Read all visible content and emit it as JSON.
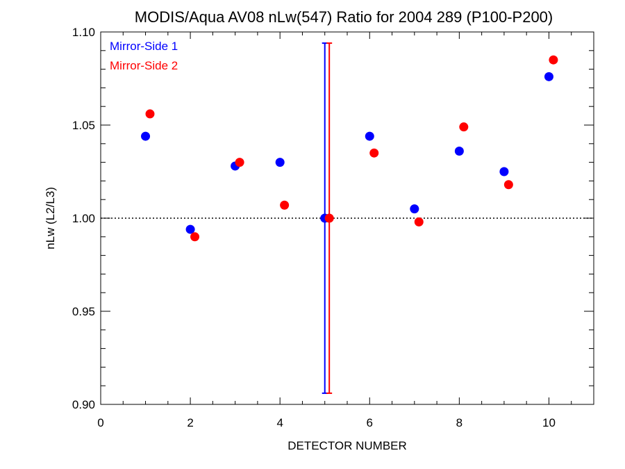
{
  "chart_data": {
    "type": "scatter",
    "title": "MODIS/Aqua AV08 nLw(547) Ratio for 2004 289 (P100-P200)",
    "xlabel": "DETECTOR NUMBER",
    "ylabel": "nLw (L2/L3)",
    "xlim": [
      0,
      11
    ],
    "ylim": [
      0.9,
      1.1
    ],
    "x_ticks": [
      0,
      2,
      4,
      6,
      8,
      10
    ],
    "x_tick_labels": [
      "0",
      "2",
      "4",
      "6",
      "8",
      "10"
    ],
    "y_ticks": [
      0.9,
      0.95,
      1.0,
      1.05,
      1.1
    ],
    "y_tick_labels": [
      "0.90",
      "0.95",
      "1.00",
      "1.05",
      "1.10"
    ],
    "reference_line": 1.0,
    "legend_position": "top-left",
    "series": [
      {
        "name": "Mirror-Side 1",
        "color": "#0000ff",
        "points": [
          {
            "x": 1,
            "y": 1.044
          },
          {
            "x": 2,
            "y": 0.994
          },
          {
            "x": 3,
            "y": 1.028
          },
          {
            "x": 4,
            "y": 1.03
          },
          {
            "x": 5,
            "y": 1.0
          },
          {
            "x": 6,
            "y": 1.044
          },
          {
            "x": 7,
            "y": 1.005
          },
          {
            "x": 8,
            "y": 1.036
          },
          {
            "x": 9,
            "y": 1.025
          },
          {
            "x": 10,
            "y": 1.076
          }
        ],
        "error_bar": {
          "x": 5,
          "low": 0.906,
          "high": 1.094
        }
      },
      {
        "name": "Mirror-Side 2",
        "color": "#ff0000",
        "points": [
          {
            "x": 1.1,
            "y": 1.056
          },
          {
            "x": 2.1,
            "y": 0.99
          },
          {
            "x": 3.1,
            "y": 1.03
          },
          {
            "x": 4.1,
            "y": 1.007
          },
          {
            "x": 5.1,
            "y": 1.0
          },
          {
            "x": 6.1,
            "y": 1.035
          },
          {
            "x": 7.1,
            "y": 0.998
          },
          {
            "x": 8.1,
            "y": 1.049
          },
          {
            "x": 9.1,
            "y": 1.018
          },
          {
            "x": 10.1,
            "y": 1.085
          }
        ],
        "error_bar": {
          "x": 5.1,
          "low": 0.906,
          "high": 1.094
        }
      }
    ]
  }
}
